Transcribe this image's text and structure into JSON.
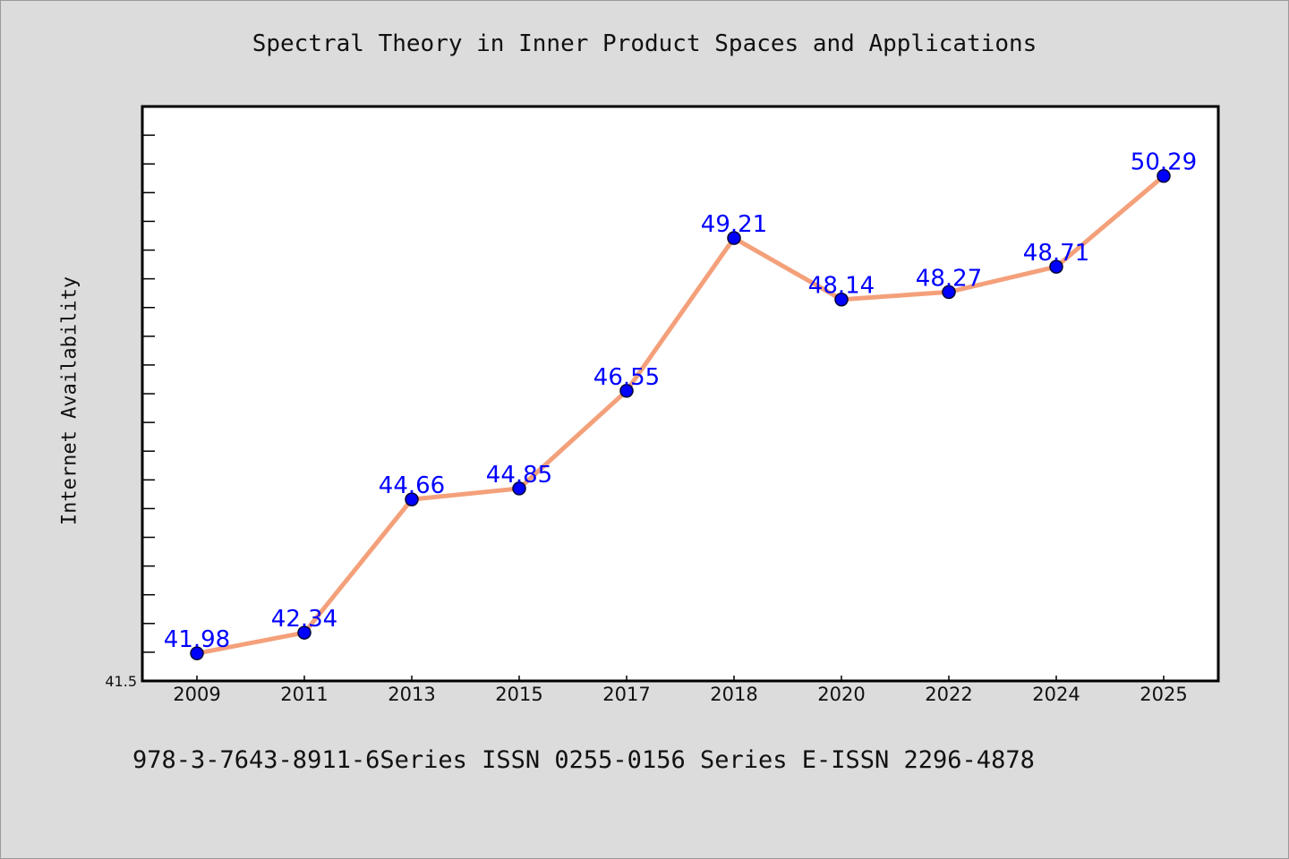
{
  "chart_data": {
    "type": "line",
    "title": "Spectral Theory in Inner Product Spaces and Applications",
    "xlabel": "",
    "ylabel": "Internet Availability",
    "categories": [
      "2009",
      "2011",
      "2013",
      "2015",
      "2017",
      "2018",
      "2020",
      "2022",
      "2024",
      "2025"
    ],
    "series": [
      {
        "values": [
          41.98,
          42.34,
          44.66,
          44.85,
          46.55,
          49.21,
          48.14,
          48.27,
          48.71,
          50.29
        ],
        "data_labels": [
          "41.98",
          "42.34",
          "44.66",
          "44.85",
          "46.55",
          "49.21",
          "48.14",
          "48.27",
          "48.71",
          "50.29"
        ],
        "line_color": "#f4a07a",
        "marker_color": "#0000ff"
      }
    ],
    "ylim": [
      41.5,
      51.5
    ],
    "y_tick_labels": [
      "41.5"
    ],
    "grid": false,
    "legend": "none",
    "background_color": "#dcdcdc",
    "plot_background_color": "#ffffff"
  },
  "footer": {
    "text": "978-3-7643-8911-6Series ISSN 0255-0156 Series E-ISSN 2296-4878"
  }
}
